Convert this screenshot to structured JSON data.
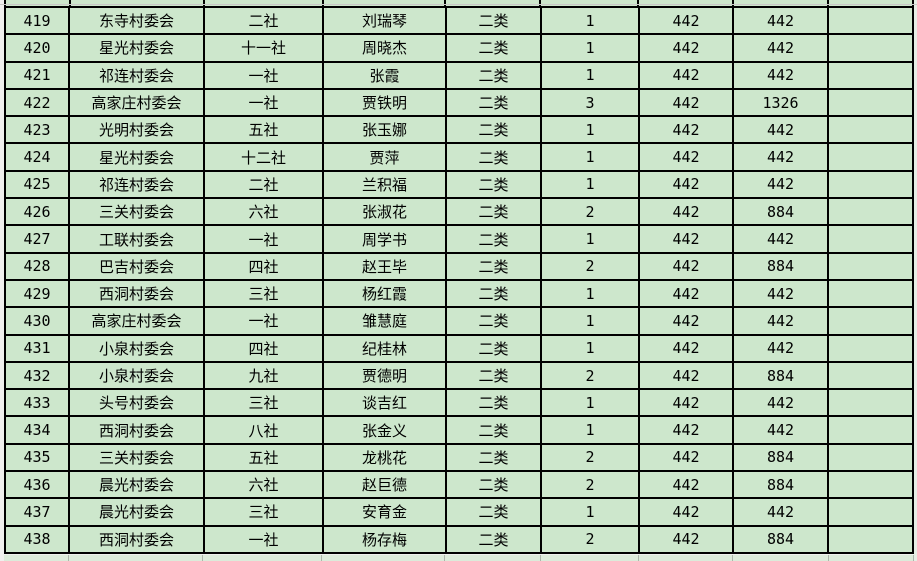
{
  "colors": {
    "cell_fill_green": "#cde7cc",
    "partial_row_fill": "#dcebda",
    "grid_border_black": "#000000",
    "sheet_margin_gray": "#f0f0ee",
    "default_gridline_gray": "#c9c9c7"
  },
  "table": {
    "column_keys": [
      "row_no",
      "village",
      "unit",
      "person",
      "category",
      "count",
      "standard",
      "total",
      "blank"
    ],
    "rows": [
      {
        "row_no": "419",
        "village": "东寺村委会",
        "unit": "二社",
        "person": "刘瑞琴",
        "category": "二类",
        "count": "1",
        "standard": "442",
        "total": "442",
        "blank": ""
      },
      {
        "row_no": "420",
        "village": "星光村委会",
        "unit": "十一社",
        "person": "周晓杰",
        "category": "二类",
        "count": "1",
        "standard": "442",
        "total": "442",
        "blank": ""
      },
      {
        "row_no": "421",
        "village": "祁连村委会",
        "unit": "一社",
        "person": "张霞",
        "category": "二类",
        "count": "1",
        "standard": "442",
        "total": "442",
        "blank": ""
      },
      {
        "row_no": "422",
        "village": "高家庄村委会",
        "unit": "一社",
        "person": "贾铁明",
        "category": "二类",
        "count": "3",
        "standard": "442",
        "total": "1326",
        "blank": ""
      },
      {
        "row_no": "423",
        "village": "光明村委会",
        "unit": "五社",
        "person": "张玉娜",
        "category": "二类",
        "count": "1",
        "standard": "442",
        "total": "442",
        "blank": ""
      },
      {
        "row_no": "424",
        "village": "星光村委会",
        "unit": "十二社",
        "person": "贾萍",
        "category": "二类",
        "count": "1",
        "standard": "442",
        "total": "442",
        "blank": ""
      },
      {
        "row_no": "425",
        "village": "祁连村委会",
        "unit": "二社",
        "person": "兰积福",
        "category": "二类",
        "count": "1",
        "standard": "442",
        "total": "442",
        "blank": ""
      },
      {
        "row_no": "426",
        "village": "三关村委会",
        "unit": "六社",
        "person": "张淑花",
        "category": "二类",
        "count": "2",
        "standard": "442",
        "total": "884",
        "blank": ""
      },
      {
        "row_no": "427",
        "village": "工联村委会",
        "unit": "一社",
        "person": "周学书",
        "category": "二类",
        "count": "1",
        "standard": "442",
        "total": "442",
        "blank": ""
      },
      {
        "row_no": "428",
        "village": "巴吉村委会",
        "unit": "四社",
        "person": "赵王毕",
        "category": "二类",
        "count": "2",
        "standard": "442",
        "total": "884",
        "blank": ""
      },
      {
        "row_no": "429",
        "village": "西洞村委会",
        "unit": "三社",
        "person": "杨红霞",
        "category": "二类",
        "count": "1",
        "standard": "442",
        "total": "442",
        "blank": ""
      },
      {
        "row_no": "430",
        "village": "高家庄村委会",
        "unit": "一社",
        "person": "雏慧庭",
        "category": "二类",
        "count": "1",
        "standard": "442",
        "total": "442",
        "blank": ""
      },
      {
        "row_no": "431",
        "village": "小泉村委会",
        "unit": "四社",
        "person": "纪桂林",
        "category": "二类",
        "count": "1",
        "standard": "442",
        "total": "442",
        "blank": ""
      },
      {
        "row_no": "432",
        "village": "小泉村委会",
        "unit": "九社",
        "person": "贾德明",
        "category": "二类",
        "count": "2",
        "standard": "442",
        "total": "884",
        "blank": ""
      },
      {
        "row_no": "433",
        "village": "头号村委会",
        "unit": "三社",
        "person": "谈吉红",
        "category": "二类",
        "count": "1",
        "standard": "442",
        "total": "442",
        "blank": ""
      },
      {
        "row_no": "434",
        "village": "西洞村委会",
        "unit": "八社",
        "person": "张金义",
        "category": "二类",
        "count": "1",
        "standard": "442",
        "total": "442",
        "blank": ""
      },
      {
        "row_no": "435",
        "village": "三关村委会",
        "unit": "五社",
        "person": "龙桃花",
        "category": "二类",
        "count": "2",
        "standard": "442",
        "total": "884",
        "blank": ""
      },
      {
        "row_no": "436",
        "village": "晨光村委会",
        "unit": "六社",
        "person": "赵巨德",
        "category": "二类",
        "count": "2",
        "standard": "442",
        "total": "884",
        "blank": ""
      },
      {
        "row_no": "437",
        "village": "晨光村委会",
        "unit": "三社",
        "person": "安育金",
        "category": "二类",
        "count": "1",
        "standard": "442",
        "total": "442",
        "blank": ""
      },
      {
        "row_no": "438",
        "village": "西洞村委会",
        "unit": "一社",
        "person": "杨存梅",
        "category": "二类",
        "count": "2",
        "standard": "442",
        "total": "884",
        "blank": ""
      }
    ]
  }
}
